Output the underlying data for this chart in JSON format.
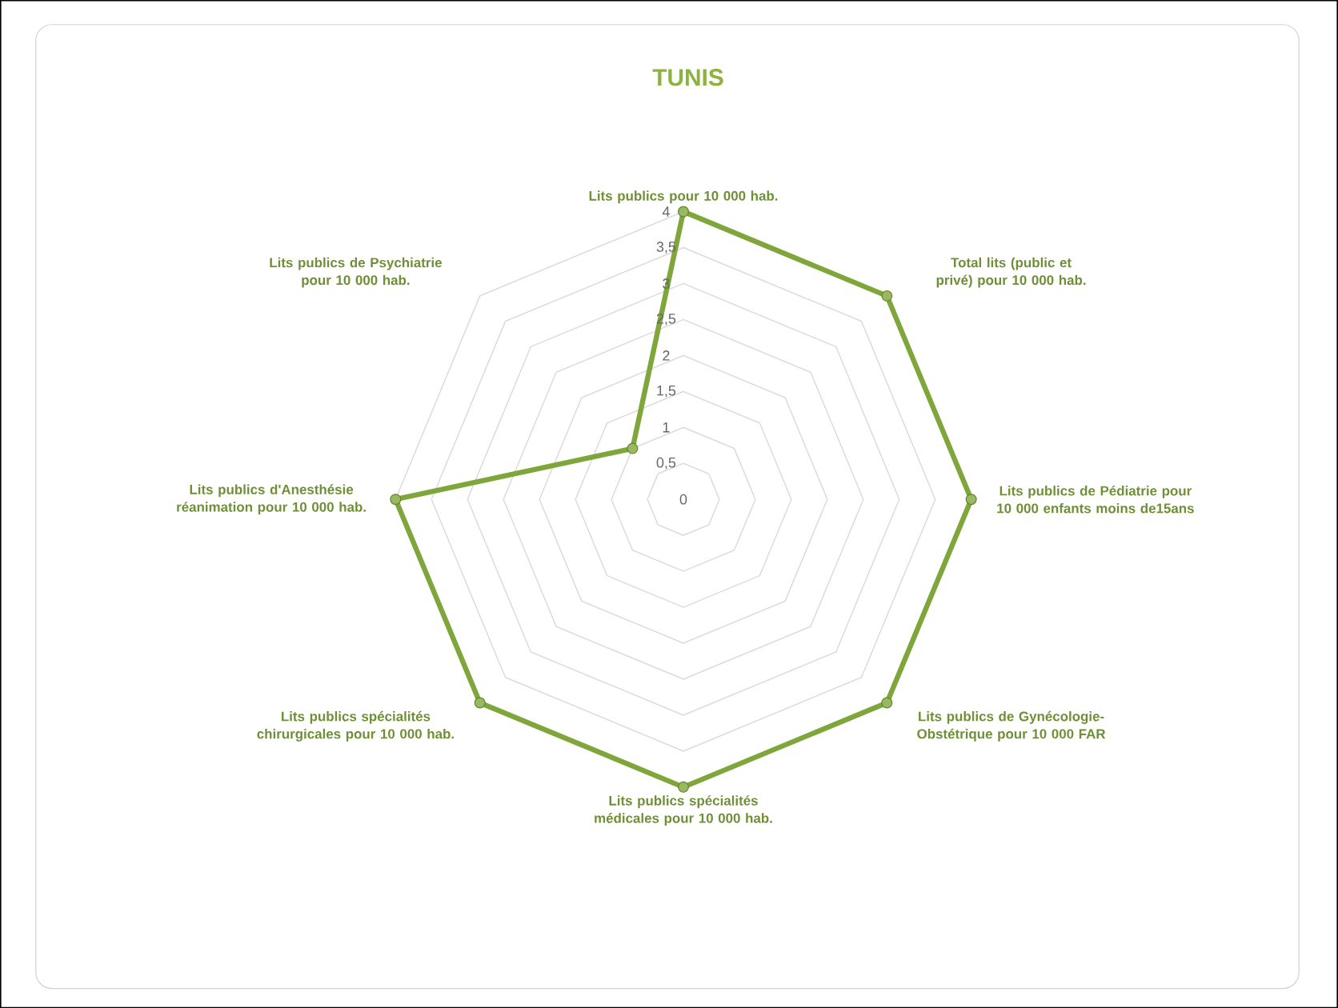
{
  "chart_data": {
    "type": "radar",
    "title": "TUNIS",
    "categories": [
      "Lits publics pour 10 000 hab.",
      "Total lits (public et privé) pour 10 000 hab.",
      "Lits publics de Pédiatrie pour 10 000 enfants moins de15ans",
      "Lits publics de Gynécologie-Obstétrique pour 10 000 FAR",
      "Lits publics spécialités médicales  pour 10 000 hab.",
      "Lits publics spécialités chirurgicales  pour 10 000 hab.",
      "Lits publics d'Anesthésie réanimation  pour 10 000 hab.",
      "Lits publics de Psychiatrie pour 10 000 hab."
    ],
    "series": [
      {
        "color": "#7ea63a",
        "values": [
          4,
          4,
          4,
          4,
          4,
          4,
          4,
          1
        ]
      }
    ],
    "ylim": [
      0,
      4
    ],
    "yticks": [
      {
        "value": 0,
        "label": "0"
      },
      {
        "value": 0.5,
        "label": "0,5"
      },
      {
        "value": 1,
        "label": "1"
      },
      {
        "value": 1.5,
        "label": "1,5"
      },
      {
        "value": 2,
        "label": "2"
      },
      {
        "value": 2.5,
        "label": "2,5"
      },
      {
        "value": 3,
        "label": "3"
      },
      {
        "value": 3.5,
        "label": "3,5"
      },
      {
        "value": 4,
        "label": "4"
      }
    ],
    "grid": true,
    "marker": "circle"
  }
}
